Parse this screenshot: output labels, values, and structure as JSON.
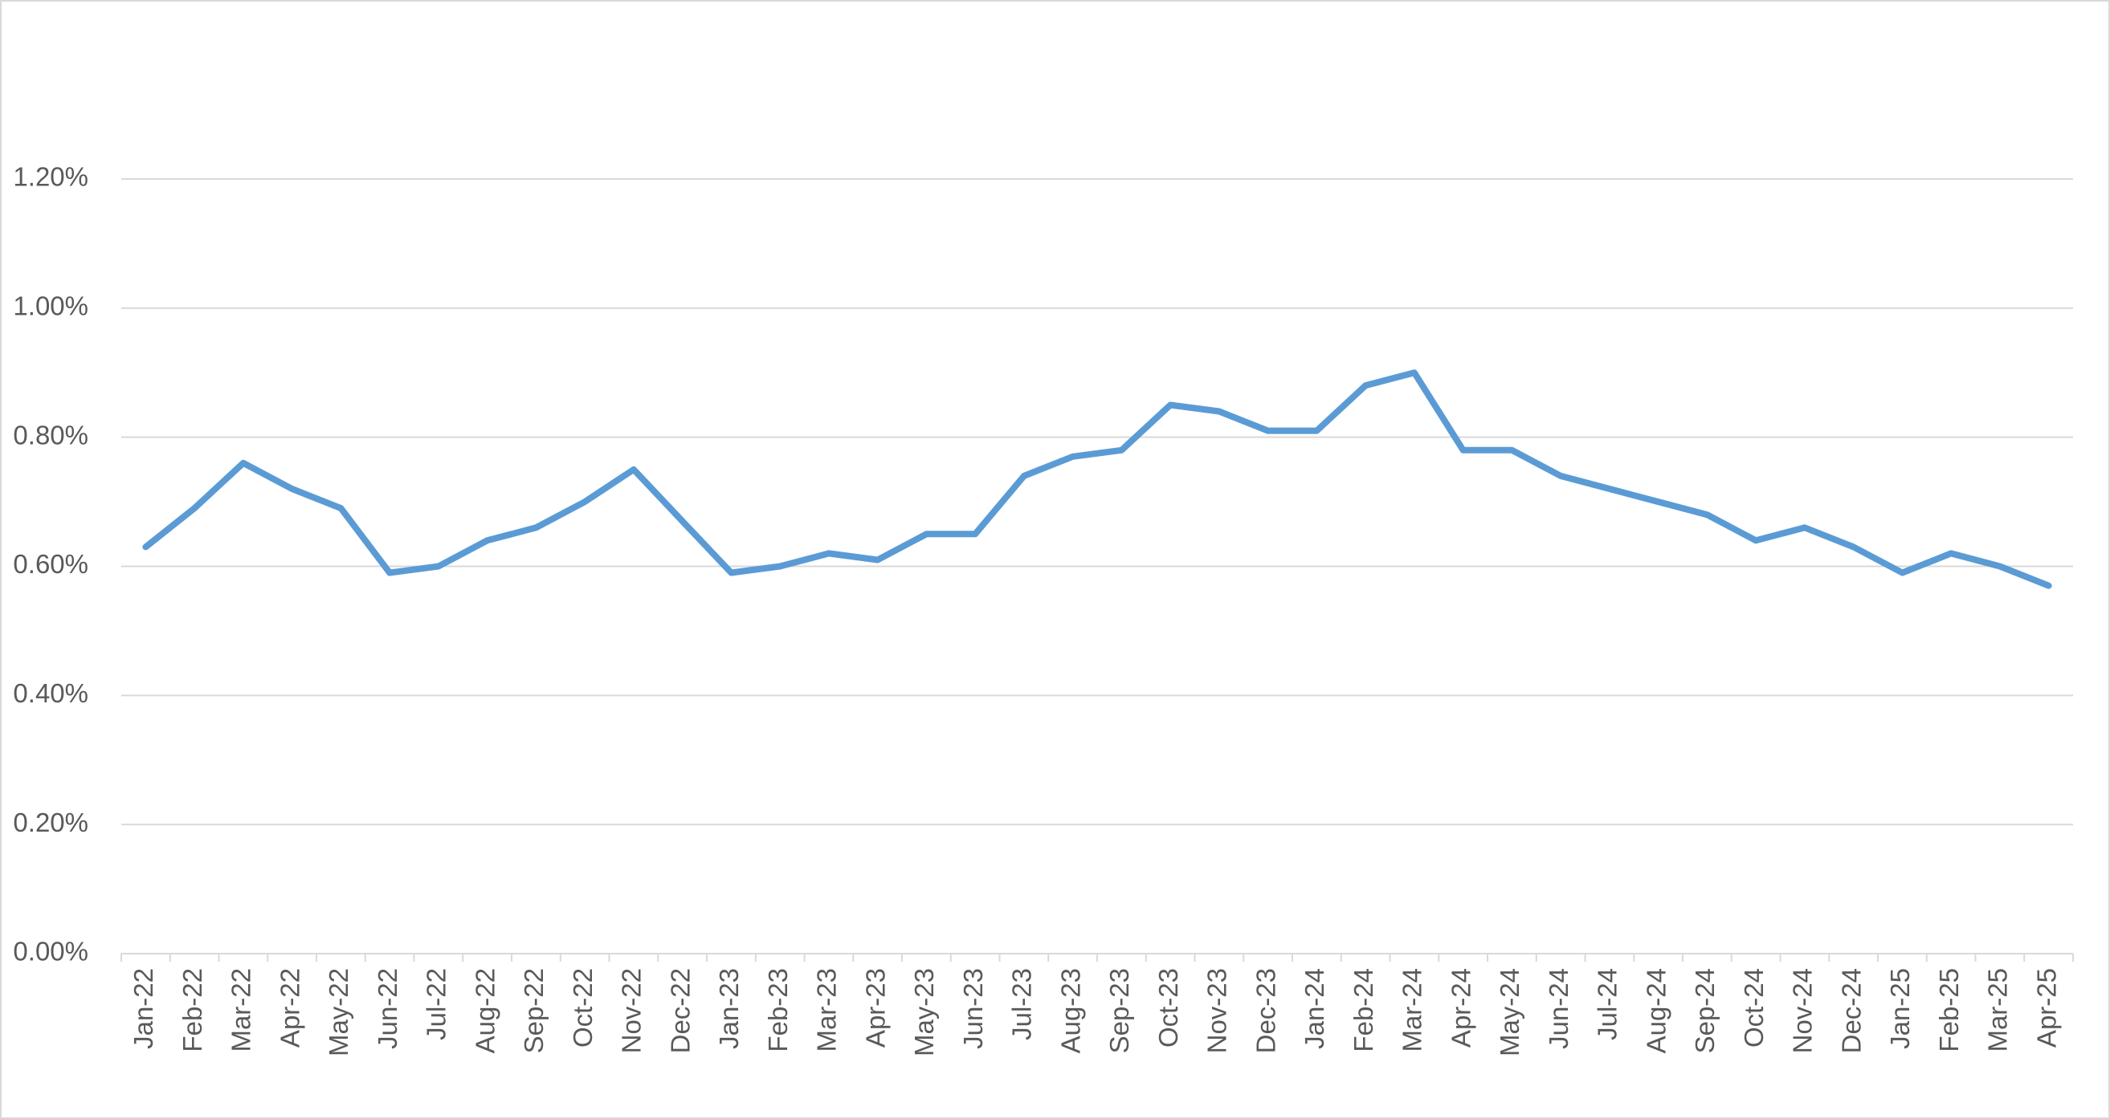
{
  "chart_data": {
    "type": "line",
    "categories": [
      "Jan-22",
      "Feb-22",
      "Mar-22",
      "Apr-22",
      "May-22",
      "Jun-22",
      "Jul-22",
      "Aug-22",
      "Sep-22",
      "Oct-22",
      "Nov-22",
      "Dec-22",
      "Jan-23",
      "Feb-23",
      "Mar-23",
      "Apr-23",
      "May-23",
      "Jun-23",
      "Jul-23",
      "Aug-23",
      "Sep-23",
      "Oct-23",
      "Nov-23",
      "Dec-23",
      "Jan-24",
      "Feb-24",
      "Mar-24",
      "Apr-24",
      "May-24",
      "Jun-24",
      "Jul-24",
      "Aug-24",
      "Sep-24",
      "Oct-24",
      "Nov-24",
      "Dec-24",
      "Jan-25",
      "Feb-25",
      "Mar-25",
      "Apr-25"
    ],
    "values": [
      0.63,
      0.69,
      0.76,
      0.72,
      0.69,
      0.59,
      0.6,
      0.64,
      0.66,
      0.7,
      0.75,
      0.67,
      0.59,
      0.6,
      0.62,
      0.61,
      0.65,
      0.65,
      0.74,
      0.77,
      0.78,
      0.85,
      0.84,
      0.81,
      0.81,
      0.88,
      0.9,
      0.78,
      0.78,
      0.74,
      0.72,
      0.7,
      0.68,
      0.64,
      0.66,
      0.63,
      0.59,
      0.62,
      0.6,
      0.57
    ],
    "color": "#5b9bd5",
    "ylim": [
      0,
      1.2
    ],
    "yticks": [
      {
        "value": 0,
        "label": "0.00%"
      },
      {
        "value": 0.2,
        "label": "0.20%"
      },
      {
        "value": 0.4,
        "label": "0.40%"
      },
      {
        "value": 0.6,
        "label": "0.60%"
      },
      {
        "value": 0.8,
        "label": "0.80%"
      },
      {
        "value": 1.0,
        "label": "1.00%"
      },
      {
        "value": 1.2,
        "label": "1.20%"
      }
    ],
    "grid": true
  }
}
